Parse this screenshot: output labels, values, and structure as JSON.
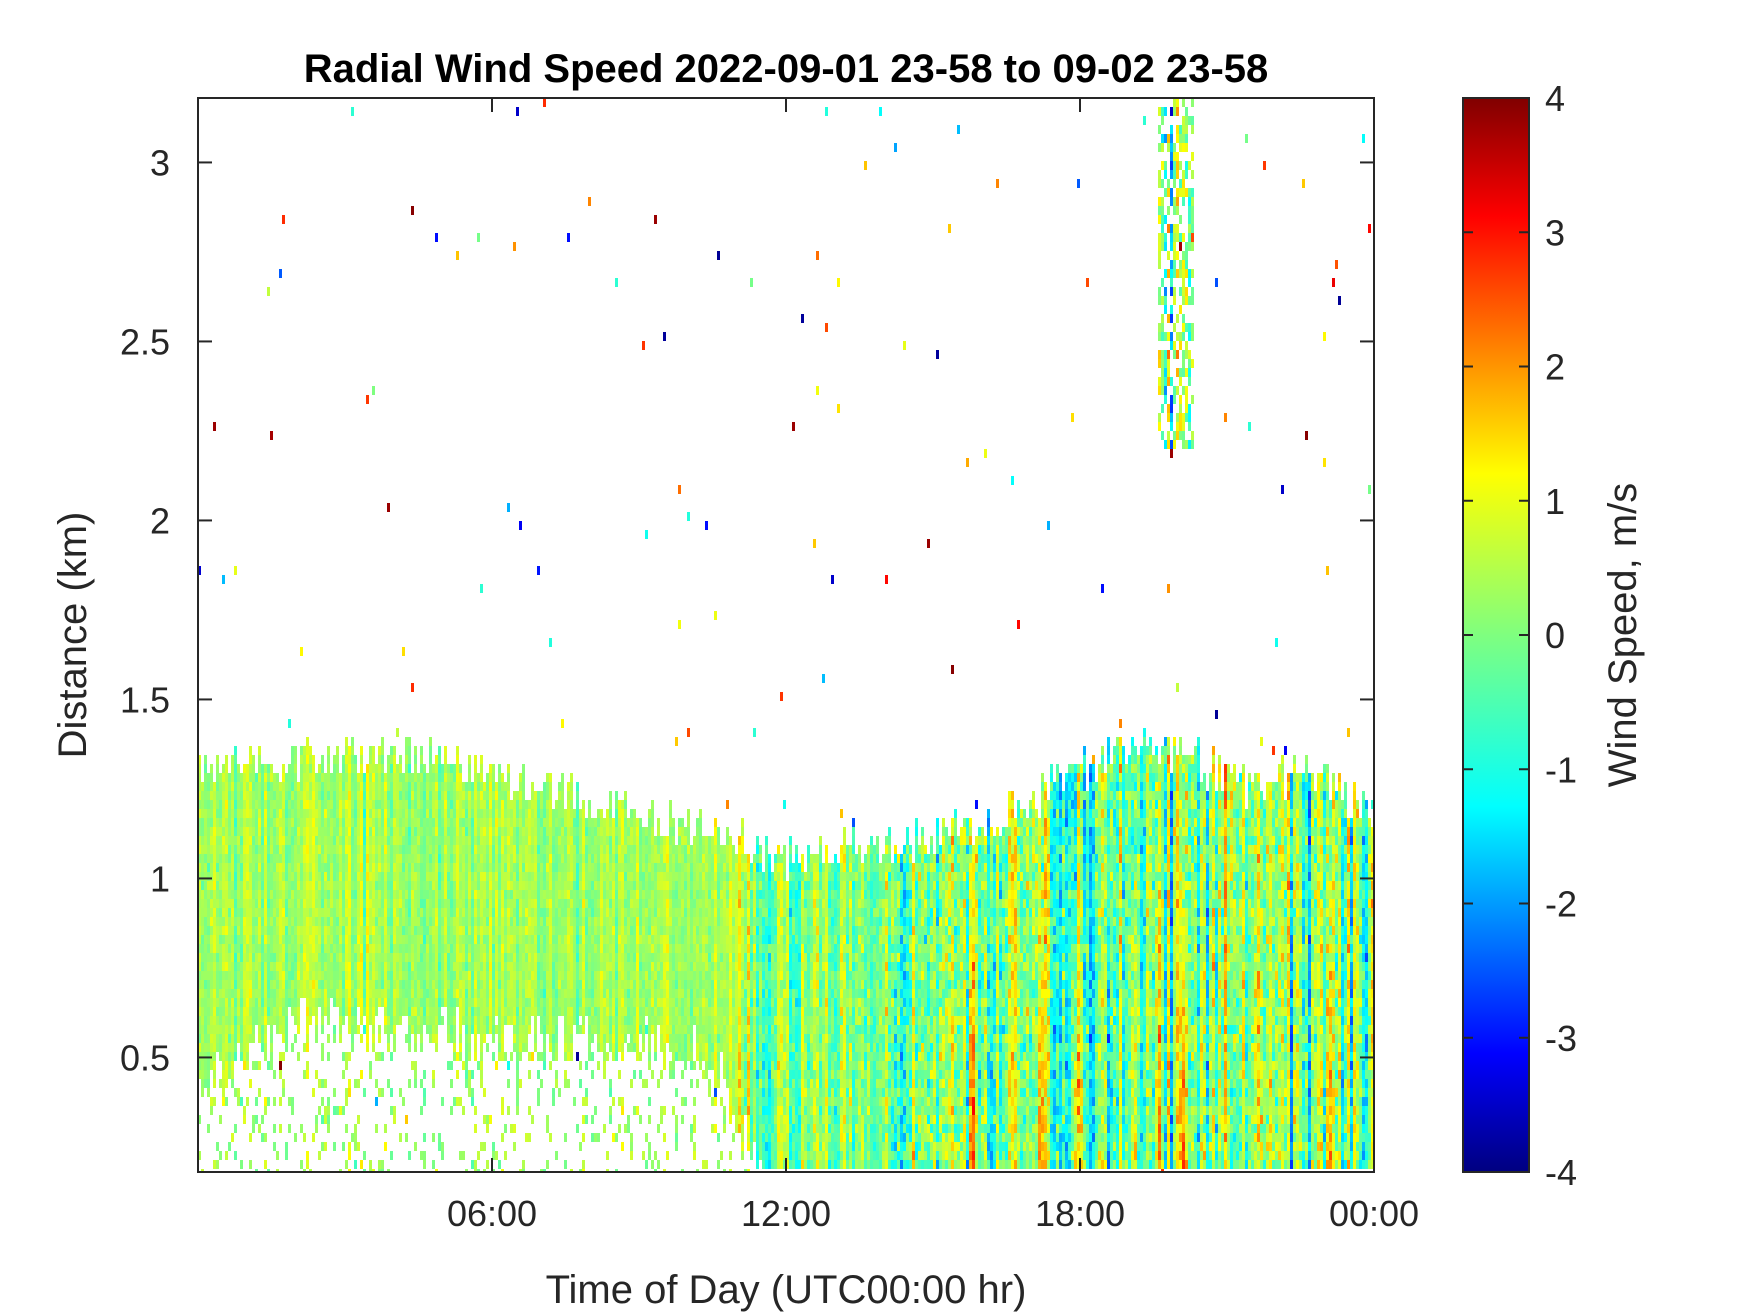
{
  "chart_data": {
    "type": "heatmap",
    "title": "Radial Wind Speed 2022-09-01 23-58 to 09-02 23-58",
    "xlabel": "Time of Day (UTC00:00 hr)",
    "ylabel": "Distance (km)",
    "xlim_hours": [
      0,
      24
    ],
    "ylim": [
      0.18,
      3.18
    ],
    "x_ticks": [
      {
        "hours": 6,
        "label": "06:00"
      },
      {
        "hours": 12,
        "label": "12:00"
      },
      {
        "hours": 18,
        "label": "18:00"
      },
      {
        "hours": 24,
        "label": "00:00"
      }
    ],
    "y_ticks": [
      {
        "value": 0.5,
        "label": "0.5"
      },
      {
        "value": 1,
        "label": "1"
      },
      {
        "value": 1.5,
        "label": "1.5"
      },
      {
        "value": 2,
        "label": "2"
      },
      {
        "value": 2.5,
        "label": "2.5"
      },
      {
        "value": 3,
        "label": "3"
      }
    ],
    "grid": false,
    "colorbar": {
      "label": "Wind Speed, m/s",
      "colormap": "jet",
      "range": [
        -4,
        4
      ],
      "ticks": [
        "4",
        "3",
        "2",
        "1",
        "0",
        "-1",
        "-2",
        "-3",
        "-4"
      ]
    },
    "boundary_layer_top_km": [
      {
        "hours": 0,
        "top": 1.3
      },
      {
        "hours": 2,
        "top": 1.33
      },
      {
        "hours": 4,
        "top": 1.35
      },
      {
        "hours": 6,
        "top": 1.3
      },
      {
        "hours": 8,
        "top": 1.22
      },
      {
        "hours": 10,
        "top": 1.15
      },
      {
        "hours": 11,
        "top": 1.12
      },
      {
        "hours": 12,
        "top": 1.05
      },
      {
        "hours": 14,
        "top": 1.1
      },
      {
        "hours": 16,
        "top": 1.15
      },
      {
        "hours": 17,
        "top": 1.22
      },
      {
        "hours": 18,
        "top": 1.3
      },
      {
        "hours": 19.5,
        "top": 1.38
      },
      {
        "hours": 20.5,
        "top": 1.32
      },
      {
        "hours": 21.5,
        "top": 1.25
      },
      {
        "hours": 22.5,
        "top": 1.3
      },
      {
        "hours": 24,
        "top": 1.2
      }
    ],
    "boundary_layer_bottom_km": [
      {
        "hours": 0,
        "bottom": 0.45
      },
      {
        "hours": 2,
        "bottom": 0.6
      },
      {
        "hours": 6,
        "bottom": 0.55
      },
      {
        "hours": 9,
        "bottom": 0.55
      },
      {
        "hours": 10.5,
        "bottom": 0.5
      },
      {
        "hours": 11.5,
        "bottom": 0.18
      },
      {
        "hours": 24,
        "bottom": 0.18
      }
    ],
    "strong_positive_streaks_hours": [
      15.8,
      17.2,
      17.9,
      18.05,
      19.1,
      19.6,
      20.1,
      23.1
    ],
    "strong_negative_streaks_hours": [
      14.2,
      16.2,
      18.6,
      21.1,
      22.3
    ],
    "upper_cloud_region": {
      "hours": [
        19.6,
        20.3
      ],
      "km": [
        2.2,
        3.18
      ]
    }
  }
}
